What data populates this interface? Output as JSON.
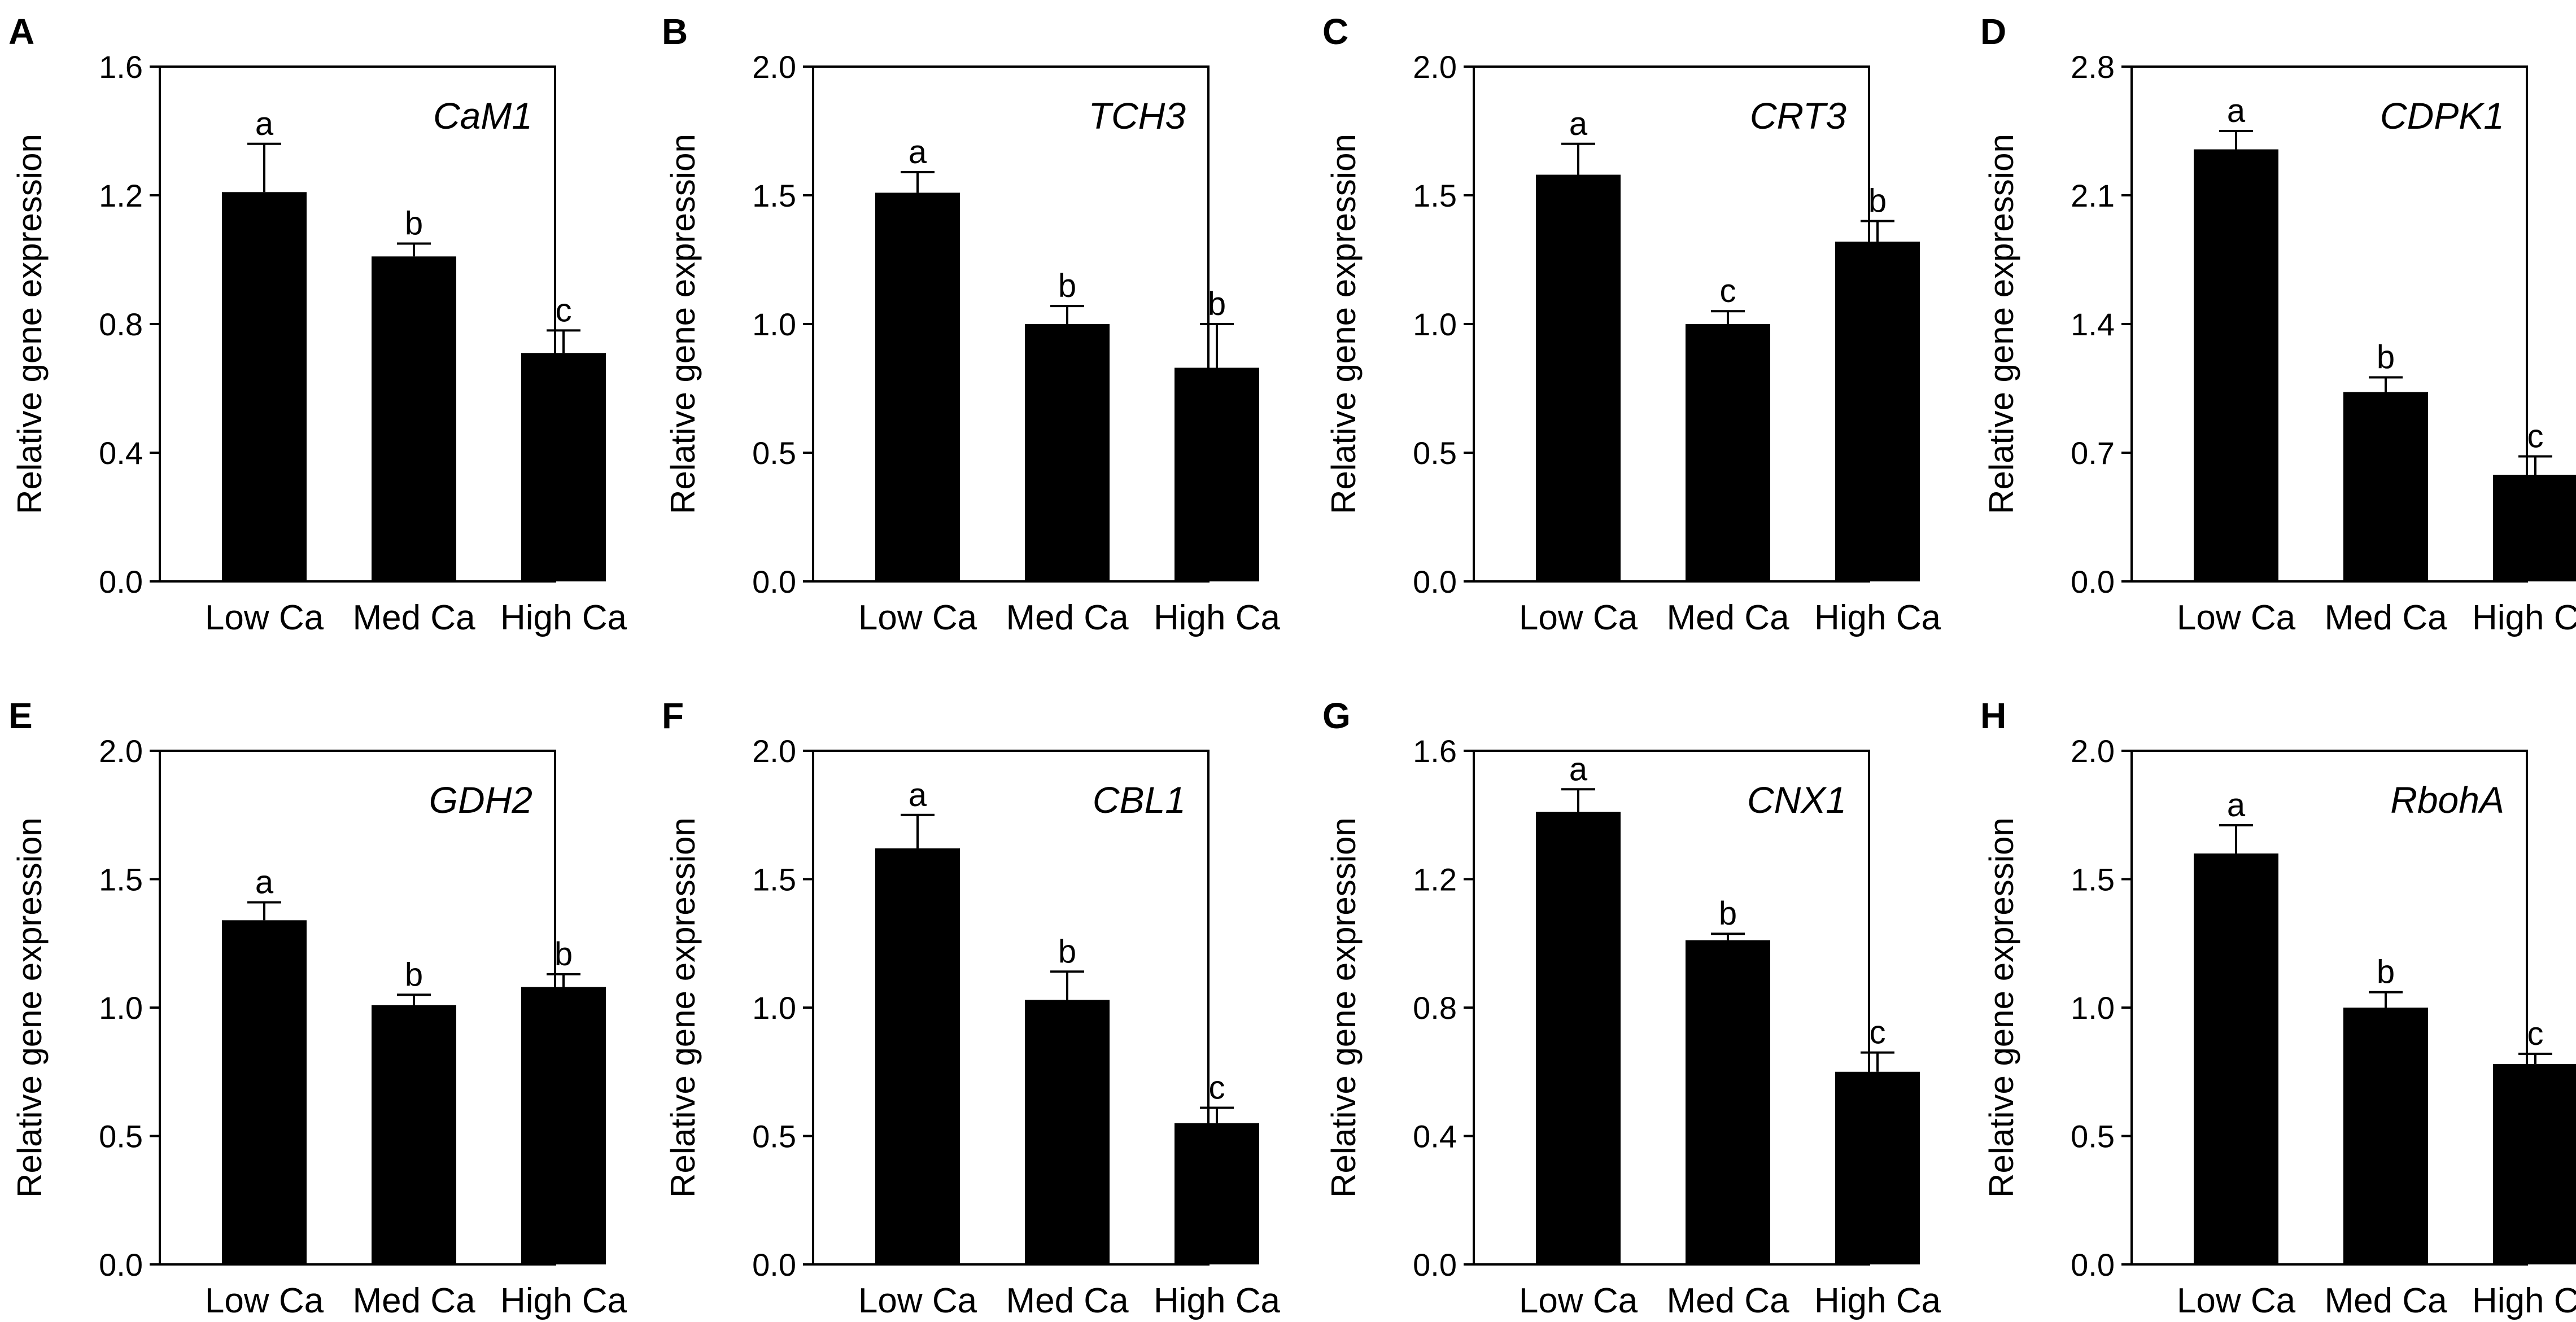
{
  "figure": {
    "type": "bar",
    "category_axis": [
      "Low Ca",
      "Med Ca",
      "High Ca"
    ]
  },
  "chart_data": [
    {
      "type": "bar",
      "panel": "A",
      "title": "CaM1",
      "ylabel": "Relative gene expression",
      "xlabel": "",
      "categories": [
        "Low Ca",
        "Med Ca",
        "High Ca"
      ],
      "values": [
        1.21,
        1.01,
        0.71
      ],
      "errors": [
        0.15,
        0.04,
        0.07
      ],
      "letters": [
        "a",
        "b",
        "c"
      ],
      "ylim": [
        0,
        1.6
      ],
      "yticks": [
        "0.0",
        "0.4",
        "0.8",
        "1.2",
        "1.6"
      ]
    },
    {
      "type": "bar",
      "panel": "B",
      "title": "TCH3",
      "ylabel": "Relative gene expression",
      "xlabel": "",
      "categories": [
        "Low Ca",
        "Med Ca",
        "High Ca"
      ],
      "values": [
        1.51,
        1.0,
        0.83
      ],
      "errors": [
        0.08,
        0.07,
        0.17
      ],
      "letters": [
        "a",
        "b",
        "b"
      ],
      "ylim": [
        0,
        2.0
      ],
      "yticks": [
        "0.0",
        "0.5",
        "1.0",
        "1.5",
        "2.0"
      ]
    },
    {
      "type": "bar",
      "panel": "C",
      "title": "CRT3",
      "ylabel": "Relative gene expression",
      "xlabel": "",
      "categories": [
        "Low Ca",
        "Med Ca",
        "High Ca"
      ],
      "values": [
        1.58,
        1.0,
        1.32
      ],
      "errors": [
        0.12,
        0.05,
        0.08
      ],
      "letters": [
        "a",
        "c",
        "b"
      ],
      "ylim": [
        0,
        2.0
      ],
      "yticks": [
        "0.0",
        "0.5",
        "1.0",
        "1.5",
        "2.0"
      ]
    },
    {
      "type": "bar",
      "panel": "D",
      "title": "CDPK1",
      "ylabel": "Relative gene expression",
      "xlabel": "",
      "categories": [
        "Low Ca",
        "Med Ca",
        "High Ca"
      ],
      "values": [
        2.35,
        1.03,
        0.58
      ],
      "errors": [
        0.1,
        0.08,
        0.1
      ],
      "letters": [
        "a",
        "b",
        "c"
      ],
      "ylim": [
        0,
        2.8
      ],
      "yticks": [
        "0.0",
        "0.7",
        "1.4",
        "2.1",
        "2.8"
      ]
    },
    {
      "type": "bar",
      "panel": "E",
      "title": "GDH2",
      "ylabel": "Relative gene expression",
      "xlabel": "",
      "categories": [
        "Low Ca",
        "Med Ca",
        "High Ca"
      ],
      "values": [
        1.34,
        1.01,
        1.08
      ],
      "errors": [
        0.07,
        0.04,
        0.05
      ],
      "letters": [
        "a",
        "b",
        "b"
      ],
      "ylim": [
        0,
        2.0
      ],
      "yticks": [
        "0.0",
        "0.5",
        "1.0",
        "1.5",
        "2.0"
      ]
    },
    {
      "type": "bar",
      "panel": "F",
      "title": "CBL1",
      "ylabel": "Relative gene expression",
      "xlabel": "",
      "categories": [
        "Low Ca",
        "Med Ca",
        "High Ca"
      ],
      "values": [
        1.62,
        1.03,
        0.55
      ],
      "errors": [
        0.13,
        0.11,
        0.06
      ],
      "letters": [
        "a",
        "b",
        "c"
      ],
      "ylim": [
        0,
        2.0
      ],
      "yticks": [
        "0.0",
        "0.5",
        "1.0",
        "1.5",
        "2.0"
      ]
    },
    {
      "type": "bar",
      "panel": "G",
      "title": "CNX1",
      "ylabel": "Relative gene expression",
      "xlabel": "",
      "categories": [
        "Low Ca",
        "Med Ca",
        "High Ca"
      ],
      "values": [
        1.41,
        1.01,
        0.6
      ],
      "errors": [
        0.07,
        0.02,
        0.06
      ],
      "letters": [
        "a",
        "b",
        "c"
      ],
      "ylim": [
        0,
        1.6
      ],
      "yticks": [
        "0.0",
        "0.4",
        "0.8",
        "1.2",
        "1.6"
      ]
    },
    {
      "type": "bar",
      "panel": "H",
      "title": "RbohA",
      "ylabel": "Relative gene expression",
      "xlabel": "",
      "categories": [
        "Low Ca",
        "Med Ca",
        "High Ca"
      ],
      "values": [
        1.6,
        1.0,
        0.78
      ],
      "errors": [
        0.11,
        0.06,
        0.04
      ],
      "letters": [
        "a",
        "b",
        "c"
      ],
      "ylim": [
        0,
        2.0
      ],
      "yticks": [
        "0.0",
        "0.5",
        "1.0",
        "1.5",
        "2.0"
      ]
    }
  ]
}
